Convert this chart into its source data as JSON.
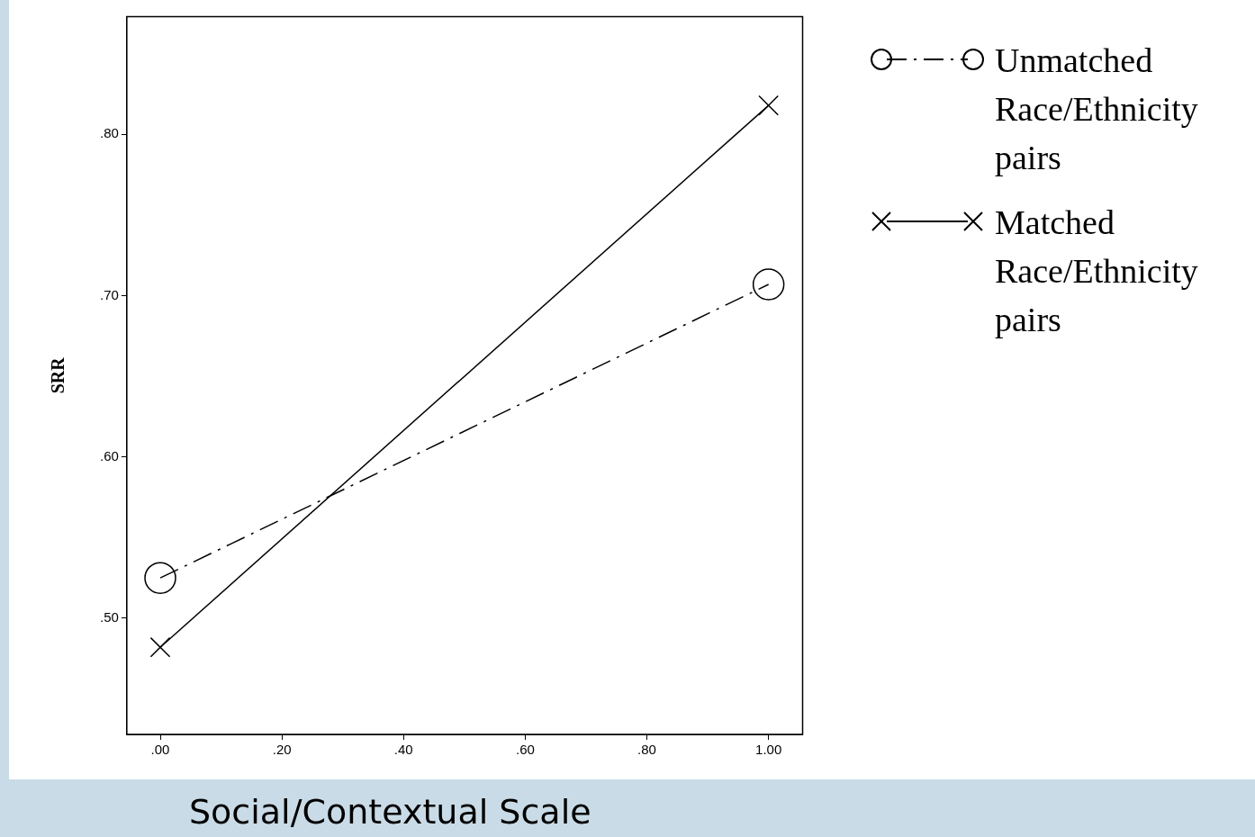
{
  "chart_data": {
    "type": "line",
    "xlabel": "Social/Contextual Scale",
    "ylabel": "SRR",
    "x": [
      0,
      1
    ],
    "series": [
      {
        "name": "Unmatched Race/Ethnicity pairs",
        "color": "#000000",
        "values": [
          0.525,
          0.707
        ],
        "marker": "circle",
        "line_style": "dashed"
      },
      {
        "name": "Matched Race/Ethnicity pairs",
        "color": "#000000",
        "values": [
          0.482,
          0.818
        ],
        "marker": "cross",
        "line_style": "solid"
      }
    ],
    "xlim": [
      -0.055,
      1.056
    ],
    "ylim": [
      0.428,
      0.873
    ],
    "xticks": [
      {
        "value": 0,
        "label": ".00"
      },
      {
        "value": 0.2,
        "label": ".20"
      },
      {
        "value": 0.4,
        "label": ".40"
      },
      {
        "value": 0.6,
        "label": ".60"
      },
      {
        "value": 0.8,
        "label": ".80"
      },
      {
        "value": 1,
        "label": "1.00"
      }
    ],
    "yticks": [
      {
        "value": 0.5,
        "label": ".50"
      },
      {
        "value": 0.6,
        "label": ".60"
      },
      {
        "value": 0.7,
        "label": ".70"
      },
      {
        "value": 0.8,
        "label": ".80"
      }
    ],
    "grid": false,
    "legend": "right"
  }
}
